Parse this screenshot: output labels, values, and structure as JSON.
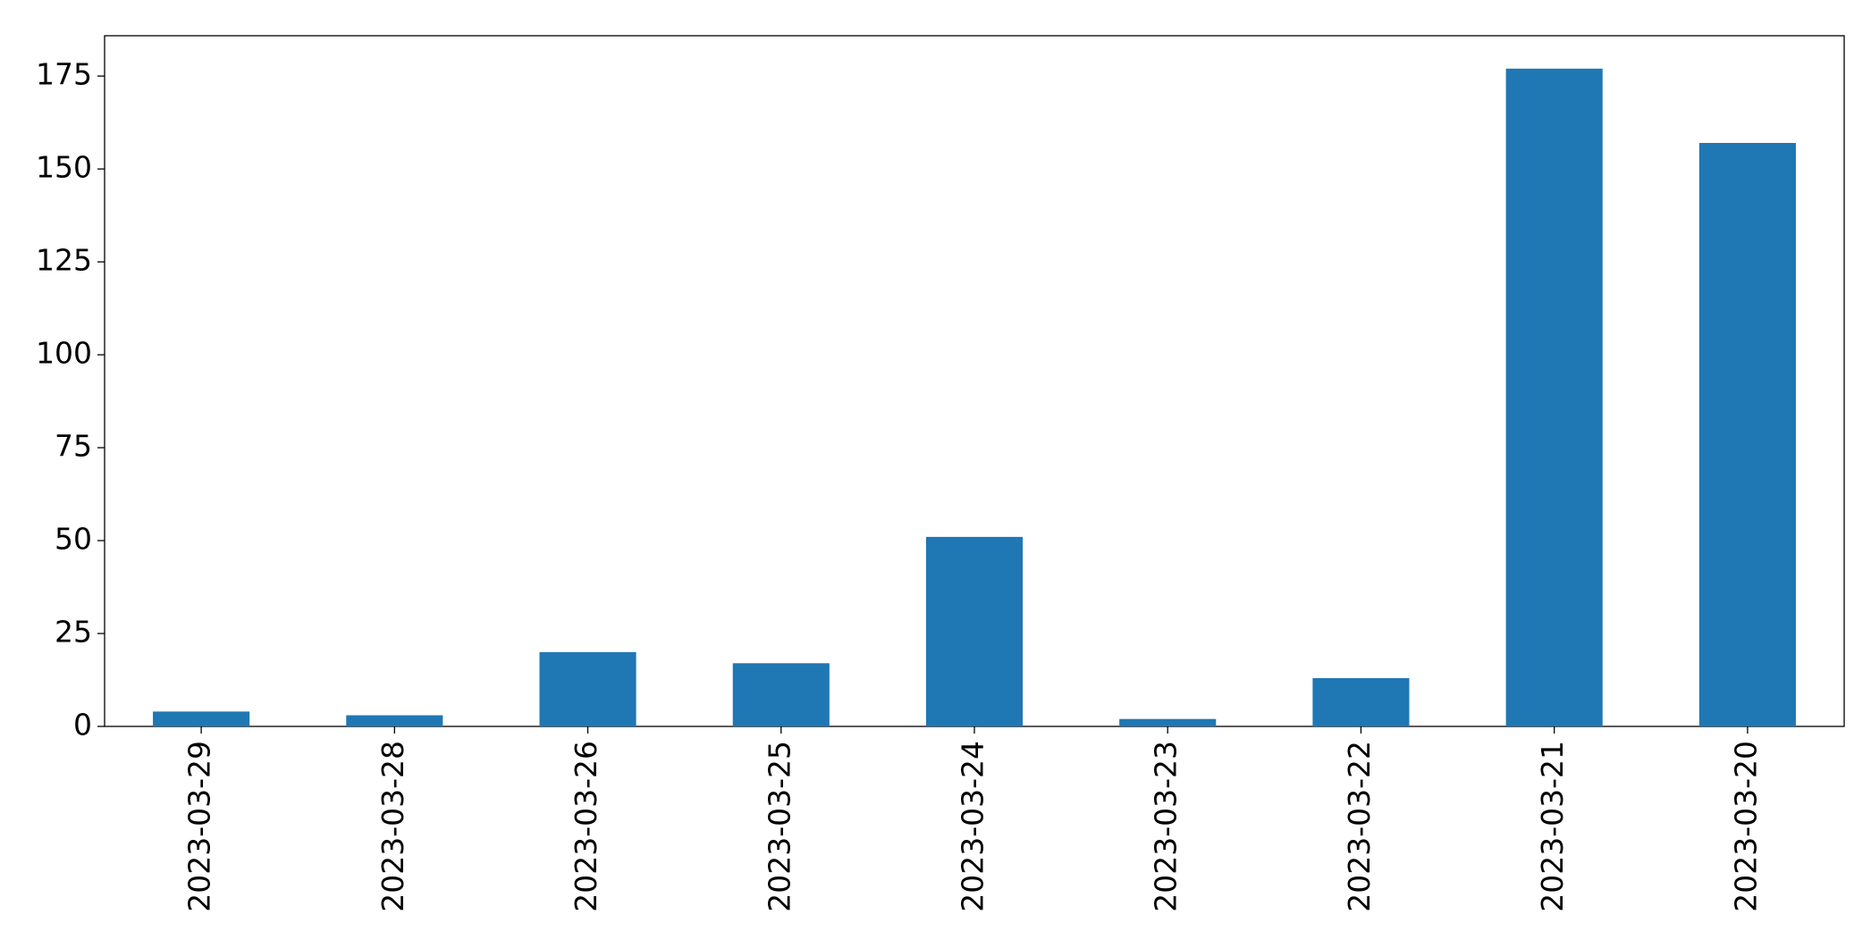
{
  "chart_data": {
    "type": "bar",
    "categories": [
      "2023-03-29",
      "2023-03-28",
      "2023-03-26",
      "2023-03-25",
      "2023-03-24",
      "2023-03-23",
      "2023-03-22",
      "2023-03-21",
      "2023-03-20"
    ],
    "values": [
      4,
      3,
      20,
      17,
      51,
      2,
      13,
      177,
      157
    ],
    "color": "#1f77b4",
    "ylim": [
      0,
      185.85
    ],
    "yticks": [
      0,
      25,
      50,
      75,
      100,
      125,
      150,
      175
    ],
    "grid": false
  }
}
